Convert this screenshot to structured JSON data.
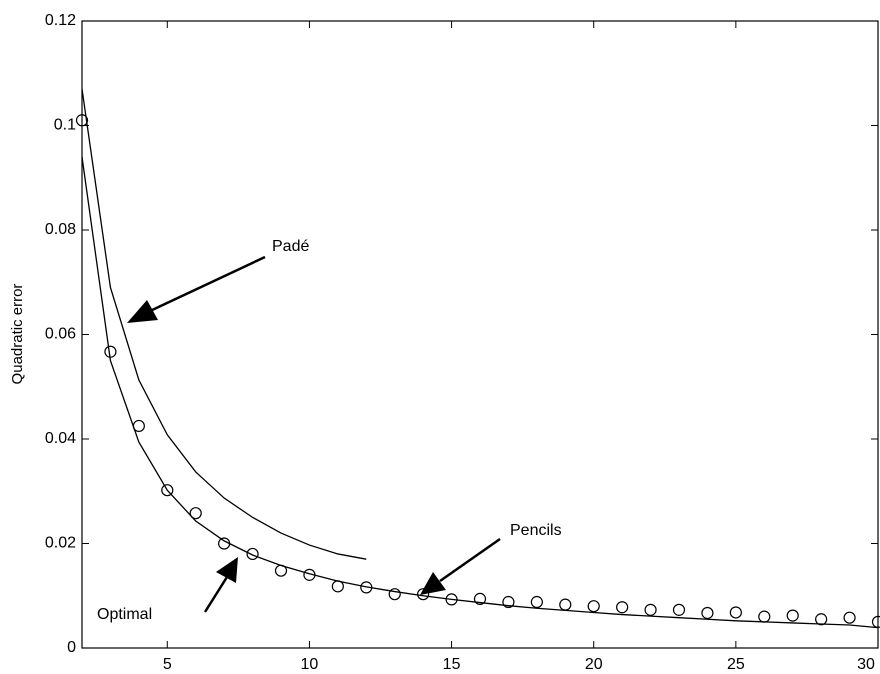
{
  "chart_data": {
    "type": "line",
    "ylabel": "Quadratic error",
    "x": [
      2,
      3,
      4,
      5,
      6,
      7,
      8,
      9,
      10,
      11,
      12,
      13,
      14,
      15,
      16,
      17,
      18,
      19,
      20,
      21,
      22,
      23,
      24,
      25,
      26,
      27,
      28,
      29,
      30
    ],
    "series": [
      {
        "name": "Padé",
        "color": "#000000",
        "marker": "none",
        "line": true,
        "values": [
          0.107,
          0.069,
          0.0513,
          0.0408,
          0.0337,
          0.0287,
          0.025,
          0.022,
          0.0197,
          0.018,
          0.017,
          null,
          null,
          null,
          null,
          null,
          null,
          null,
          null,
          null,
          null,
          null,
          null,
          null,
          null,
          null,
          null,
          null,
          null
        ]
      },
      {
        "name": "Optimal",
        "color": "#000000",
        "marker": "none",
        "line": true,
        "values": [
          0.094,
          0.055,
          0.0394,
          0.0302,
          0.0243,
          0.0205,
          0.0178,
          0.0158,
          0.0142,
          0.0128,
          0.0117,
          0.0108,
          0.01,
          0.0093,
          0.0087,
          0.0081,
          0.0076,
          0.0072,
          0.0068,
          0.0064,
          0.0061,
          0.0058,
          0.0055,
          0.0052,
          0.005,
          0.0048,
          0.0046,
          0.0044,
          0.0039
        ]
      },
      {
        "name": "Pencils",
        "color": "#000000",
        "marker": "circle",
        "line": false,
        "values": [
          0.101,
          0.0567,
          0.0425,
          0.0302,
          0.0258,
          0.02,
          0.018,
          0.0148,
          0.014,
          0.0118,
          0.0116,
          0.0103,
          0.0103,
          0.0093,
          0.0094,
          0.0088,
          0.0088,
          0.0083,
          0.008,
          0.0078,
          0.0073,
          0.0073,
          0.0067,
          0.0068,
          0.006,
          0.0062,
          0.0055,
          0.0058,
          0.005
        ]
      }
    ],
    "xlim": [
      2,
      30
    ],
    "ylim": [
      0,
      0.12
    ],
    "xticks": [
      5,
      10,
      15,
      20,
      25,
      30
    ],
    "yticks": [
      0,
      0.02,
      0.04,
      0.06,
      0.08,
      0.1,
      0.12
    ],
    "grid": false
  }
}
